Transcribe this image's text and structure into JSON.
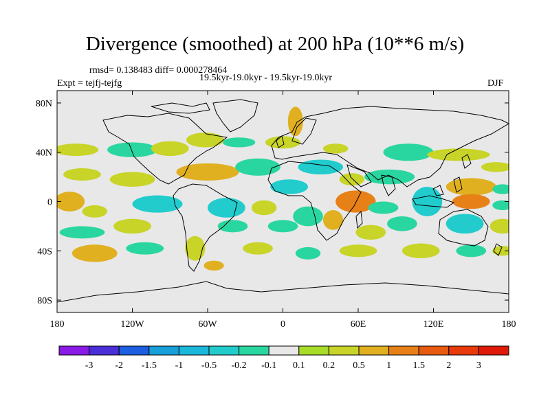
{
  "chart_data": {
    "type": "heatmap",
    "title": "Divergence (smoothed) at 200 hPa (10**6 m/s)",
    "stats_label": "rmsd= 0.138483  diff= 0.000278464",
    "period_label": "19.5kyr-19.0kyr - 19.5kyr-19.0kyr",
    "experiment_label": "Expt = tejfj-tejfg",
    "season_label": "DJF",
    "x_ticks": [
      "180",
      "120W",
      "60W",
      "0",
      "60E",
      "120E",
      "180"
    ],
    "x_tick_values": [
      -180,
      -120,
      -60,
      0,
      60,
      120,
      180
    ],
    "y_ticks": [
      "80N",
      "40N",
      "0",
      "40S",
      "80S"
    ],
    "y_tick_values": [
      80,
      40,
      0,
      -40,
      -80
    ],
    "xlim": [
      -180,
      180
    ],
    "ylim": [
      -90,
      90
    ],
    "legend_labels": [
      "-3",
      "-2",
      "-1.5",
      "-1",
      "-0.5",
      "-0.2",
      "-0.1",
      "0.1",
      "0.2",
      "0.5",
      "1",
      "1.5",
      "2",
      "3"
    ],
    "levels": [
      -3,
      -2,
      -1.5,
      -1,
      -0.5,
      -0.2,
      -0.1,
      0.1,
      0.2,
      0.5,
      1,
      1.5,
      2,
      3
    ],
    "legend_colors": [
      "#8a1ae6",
      "#4a2ed8",
      "#1e5ee0",
      "#189ed8",
      "#1cb8dc",
      "#22cccc",
      "#2ad6a0",
      "#e8e8e8",
      "#a8dc28",
      "#c8d428",
      "#e0b020",
      "#e88018",
      "#e85a10",
      "#e83a0a",
      "#e01a08"
    ],
    "blobs": [
      {
        "lon": -165,
        "lat": 42,
        "rx": 18,
        "ry": 5,
        "v": 0.2
      },
      {
        "lon": -120,
        "lat": 42,
        "rx": 20,
        "ry": 6,
        "v": -0.2
      },
      {
        "lon": -90,
        "lat": 43,
        "rx": 15,
        "ry": 6,
        "v": 0.2
      },
      {
        "lon": -62,
        "lat": 50,
        "rx": 15,
        "ry": 6,
        "v": 0.2
      },
      {
        "lon": -35,
        "lat": 48,
        "rx": 13,
        "ry": 4,
        "v": -0.2
      },
      {
        "lon": 0,
        "lat": 48,
        "rx": 14,
        "ry": 5,
        "v": 0.2
      },
      {
        "lon": 10,
        "lat": 65,
        "rx": 6,
        "ry": 12,
        "v": 0.5
      },
      {
        "lon": 42,
        "lat": 43,
        "rx": 10,
        "ry": 4,
        "v": 0.2
      },
      {
        "lon": 100,
        "lat": 40,
        "rx": 20,
        "ry": 7,
        "v": -0.2
      },
      {
        "lon": 140,
        "lat": 38,
        "rx": 25,
        "ry": 5,
        "v": 0.2
      },
      {
        "lon": 170,
        "lat": 28,
        "rx": 12,
        "ry": 4,
        "v": 0.2
      },
      {
        "lon": -160,
        "lat": 22,
        "rx": 15,
        "ry": 5,
        "v": 0.2
      },
      {
        "lon": -120,
        "lat": 18,
        "rx": 18,
        "ry": 6,
        "v": 0.2
      },
      {
        "lon": -60,
        "lat": 24,
        "rx": 25,
        "ry": 7,
        "v": 0.5
      },
      {
        "lon": -20,
        "lat": 28,
        "rx": 18,
        "ry": 7,
        "v": -0.2
      },
      {
        "lon": 5,
        "lat": 12,
        "rx": 15,
        "ry": 6,
        "v": -0.5
      },
      {
        "lon": 30,
        "lat": 28,
        "rx": 18,
        "ry": 6,
        "v": -0.5
      },
      {
        "lon": 55,
        "lat": 18,
        "rx": 10,
        "ry": 5,
        "v": 0.2
      },
      {
        "lon": 85,
        "lat": 20,
        "rx": 20,
        "ry": 6,
        "v": -0.2
      },
      {
        "lon": 150,
        "lat": 12,
        "rx": 20,
        "ry": 7,
        "v": 0.5
      },
      {
        "lon": 175,
        "lat": 10,
        "rx": 8,
        "ry": 4,
        "v": -0.2
      },
      {
        "lon": -170,
        "lat": 0,
        "rx": 12,
        "ry": 8,
        "v": 0.5
      },
      {
        "lon": -150,
        "lat": -8,
        "rx": 10,
        "ry": 5,
        "v": 0.2
      },
      {
        "lon": -100,
        "lat": -2,
        "rx": 20,
        "ry": 7,
        "v": -0.5
      },
      {
        "lon": -45,
        "lat": -5,
        "rx": 15,
        "ry": 8,
        "v": -0.5
      },
      {
        "lon": -15,
        "lat": -5,
        "rx": 10,
        "ry": 6,
        "v": 0.2
      },
      {
        "lon": 20,
        "lat": -12,
        "rx": 12,
        "ry": 8,
        "v": -0.2
      },
      {
        "lon": 58,
        "lat": 0,
        "rx": 16,
        "ry": 9,
        "v": 1
      },
      {
        "lon": 80,
        "lat": -5,
        "rx": 12,
        "ry": 5,
        "v": -0.2
      },
      {
        "lon": 115,
        "lat": 0,
        "rx": 12,
        "ry": 12,
        "v": -0.5
      },
      {
        "lon": 150,
        "lat": 0,
        "rx": 15,
        "ry": 6,
        "v": 1
      },
      {
        "lon": 175,
        "lat": -3,
        "rx": 8,
        "ry": 4,
        "v": -0.2
      },
      {
        "lon": -160,
        "lat": -25,
        "rx": 18,
        "ry": 5,
        "v": -0.2
      },
      {
        "lon": -120,
        "lat": -20,
        "rx": 15,
        "ry": 6,
        "v": 0.2
      },
      {
        "lon": -40,
        "lat": -20,
        "rx": 12,
        "ry": 5,
        "v": -0.2
      },
      {
        "lon": 0,
        "lat": -20,
        "rx": 12,
        "ry": 5,
        "v": -0.2
      },
      {
        "lon": 40,
        "lat": -15,
        "rx": 8,
        "ry": 8,
        "v": 0.5
      },
      {
        "lon": 70,
        "lat": -25,
        "rx": 12,
        "ry": 6,
        "v": 0.2
      },
      {
        "lon": 95,
        "lat": -18,
        "rx": 12,
        "ry": 6,
        "v": -0.2
      },
      {
        "lon": 145,
        "lat": -18,
        "rx": 15,
        "ry": 8,
        "v": -0.5
      },
      {
        "lon": 175,
        "lat": -20,
        "rx": 10,
        "ry": 6,
        "v": 0.2
      },
      {
        "lon": -150,
        "lat": -42,
        "rx": 18,
        "ry": 7,
        "v": 0.5
      },
      {
        "lon": -110,
        "lat": -38,
        "rx": 15,
        "ry": 5,
        "v": -0.2
      },
      {
        "lon": -70,
        "lat": -38,
        "rx": 8,
        "ry": 10,
        "v": 0.2
      },
      {
        "lon": -55,
        "lat": -52,
        "rx": 8,
        "ry": 4,
        "v": 0.5
      },
      {
        "lon": -20,
        "lat": -38,
        "rx": 12,
        "ry": 5,
        "v": 0.2
      },
      {
        "lon": 20,
        "lat": -42,
        "rx": 10,
        "ry": 5,
        "v": -0.2
      },
      {
        "lon": 60,
        "lat": -40,
        "rx": 15,
        "ry": 5,
        "v": 0.2
      },
      {
        "lon": 110,
        "lat": -40,
        "rx": 15,
        "ry": 6,
        "v": 0.2
      },
      {
        "lon": 150,
        "lat": -40,
        "rx": 12,
        "ry": 5,
        "v": -0.2
      },
      {
        "lon": 175,
        "lat": -40,
        "rx": 8,
        "ry": 4,
        "v": 0.2
      }
    ]
  }
}
